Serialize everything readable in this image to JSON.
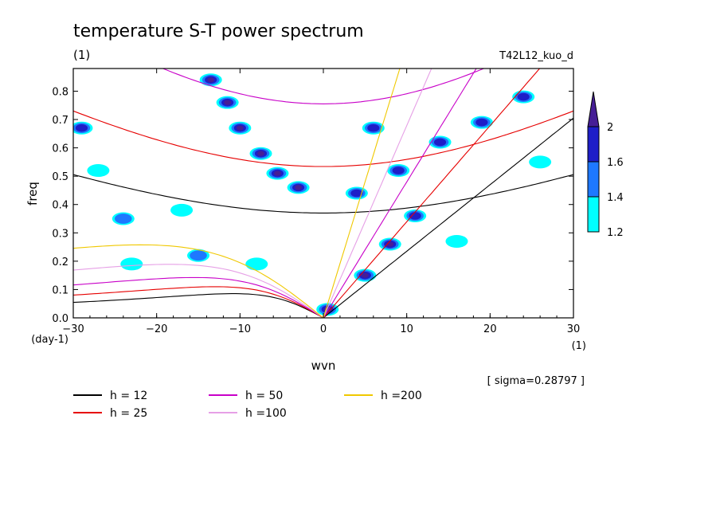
{
  "chart_data": {
    "type": "heatmap",
    "title": "temperature S-T power spectrum",
    "subtitle_left": "(1)",
    "subtitle_right": "T42L12_kuo_d",
    "xlabel": "wvn",
    "ylabel": "freq",
    "x_unit": "(1)",
    "y_unit": "(day-1)",
    "xlim": [
      -30,
      30
    ],
    "ylim": [
      0,
      0.88
    ],
    "xticks": [
      -30,
      -20,
      -10,
      0,
      10,
      20,
      30
    ],
    "yticks": [
      0.0,
      0.1,
      0.2,
      0.3,
      0.4,
      0.5,
      0.6,
      0.7,
      0.8
    ],
    "annotation": "[ sigma=0.28797 ]",
    "colorbar": {
      "levels": [
        1.2,
        1.4,
        1.6,
        2
      ],
      "labels": [
        "1.2",
        "1.4",
        "1.6",
        "2"
      ],
      "colors": [
        "#00ffff",
        "#1e78ff",
        "#1e1ec8",
        "#461e96"
      ]
    },
    "series": [
      {
        "name": "h = 12",
        "h": 12,
        "color": "#000000"
      },
      {
        "name": "h = 25",
        "h": 25,
        "color": "#e60000"
      },
      {
        "name": "h = 50",
        "h": 50,
        "color": "#c800c8"
      },
      {
        "name": "h =100",
        "h": 100,
        "color": "#e6a0e6"
      },
      {
        "name": "h =200",
        "h": 200,
        "color": "#f0c800"
      }
    ],
    "high_power_regions": [
      {
        "x": -13.5,
        "y": 0.84,
        "level": 2
      },
      {
        "x": -11.5,
        "y": 0.76,
        "level": 2
      },
      {
        "x": -10,
        "y": 0.67,
        "level": 2
      },
      {
        "x": -7.5,
        "y": 0.58,
        "level": 2
      },
      {
        "x": -5.5,
        "y": 0.51,
        "level": 2
      },
      {
        "x": -3,
        "y": 0.46,
        "level": 2
      },
      {
        "x": 0.5,
        "y": 0.03,
        "level": 2
      },
      {
        "x": 5,
        "y": 0.15,
        "level": 2
      },
      {
        "x": 8,
        "y": 0.26,
        "level": 2
      },
      {
        "x": 11,
        "y": 0.36,
        "level": 1.6
      },
      {
        "x": 4,
        "y": 0.44,
        "level": 1.6
      },
      {
        "x": 9,
        "y": 0.52,
        "level": 1.6
      },
      {
        "x": 14,
        "y": 0.62,
        "level": 1.6
      },
      {
        "x": 19,
        "y": 0.69,
        "level": 1.6
      },
      {
        "x": 24,
        "y": 0.78,
        "level": 1.6
      },
      {
        "x": 6,
        "y": 0.67,
        "level": 1.6
      },
      {
        "x": -29,
        "y": 0.67,
        "level": 1.6
      },
      {
        "x": -24,
        "y": 0.35,
        "level": 1.4
      },
      {
        "x": -15,
        "y": 0.22,
        "level": 1.4
      },
      {
        "x": -23,
        "y": 0.19,
        "level": 1.2
      },
      {
        "x": -27,
        "y": 0.52,
        "level": 1.2
      },
      {
        "x": -17,
        "y": 0.38,
        "level": 1.2
      },
      {
        "x": 26,
        "y": 0.55,
        "level": 1.2
      },
      {
        "x": 16,
        "y": 0.27,
        "level": 1.2
      },
      {
        "x": -8,
        "y": 0.19,
        "level": 1.2
      }
    ]
  }
}
